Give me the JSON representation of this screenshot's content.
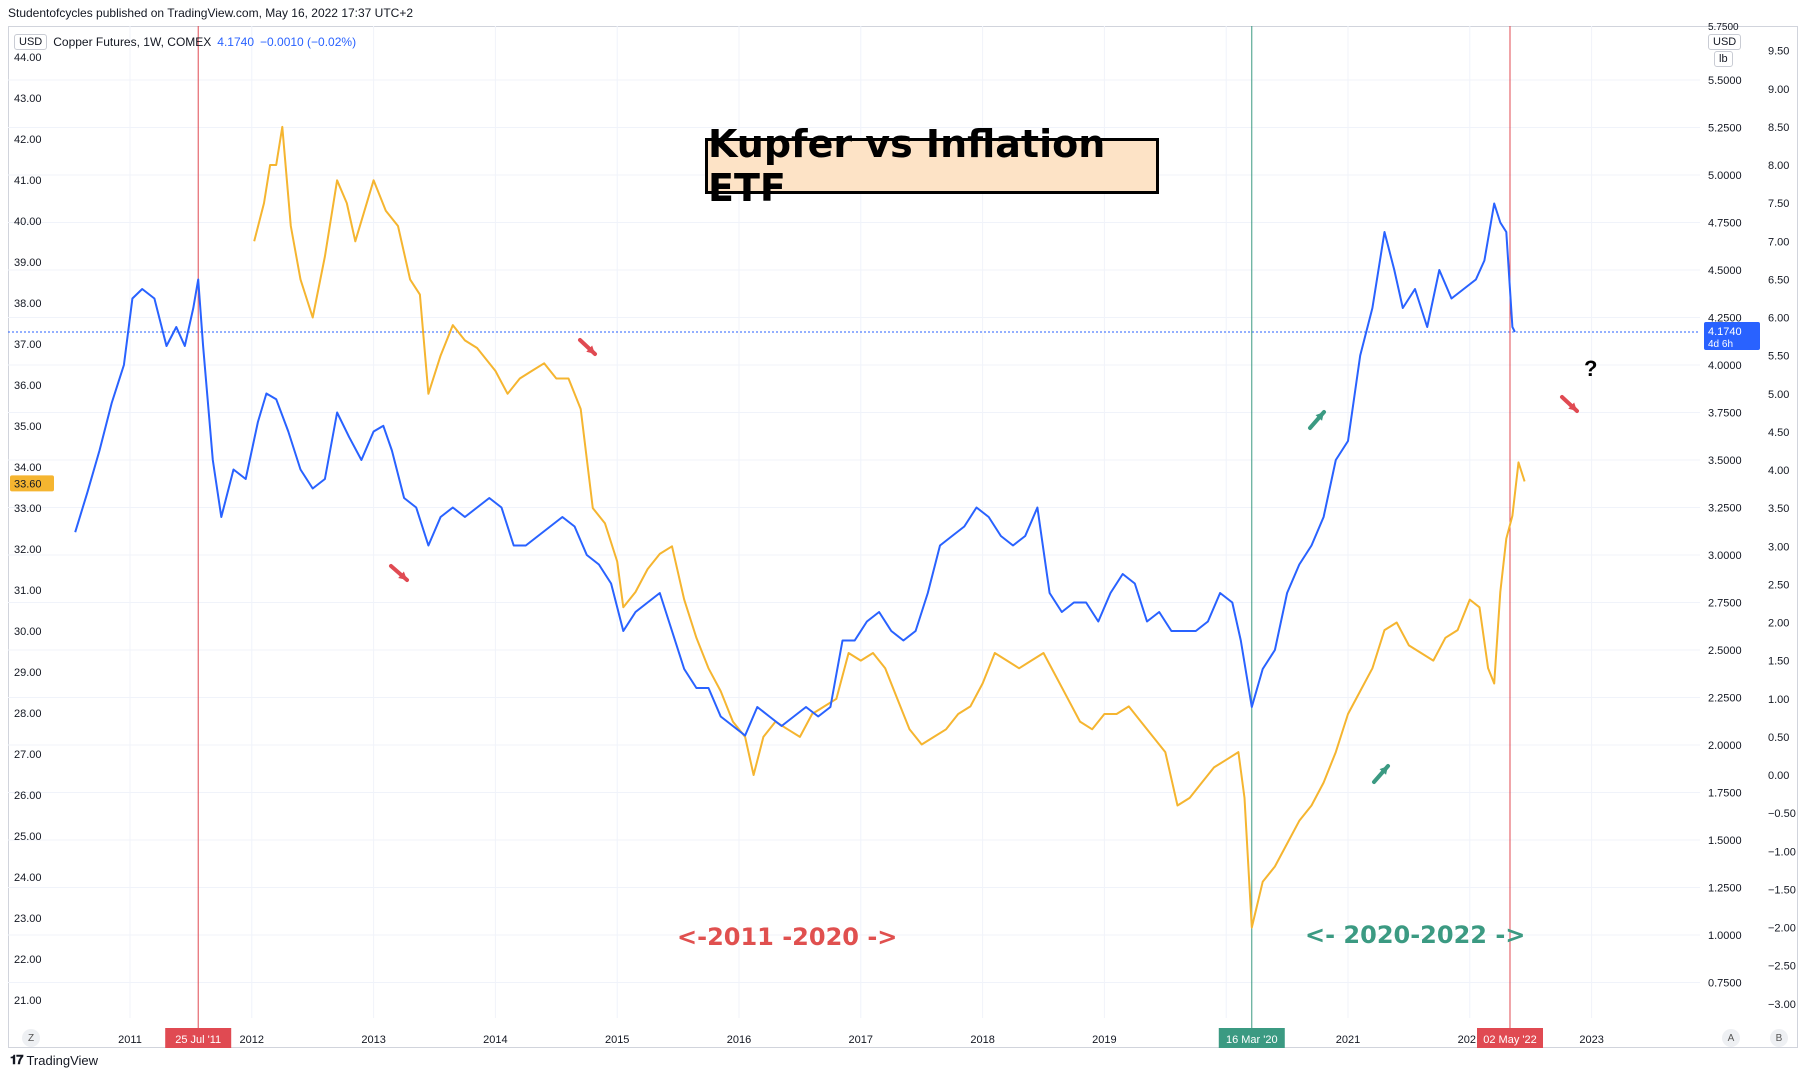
{
  "caption": "Studentofcycles published on TradingView.com, May 16, 2022 17:37 UTC+2",
  "legend": {
    "currency": "USD",
    "symbol": "Copper Futures, 1W, COMEX",
    "price": "4.1740",
    "change": "−0.0010 (−0.02%)"
  },
  "right_unit_top": "USD",
  "right_unit_bottom": "lb",
  "title": "Kupfer vs Inflation ETF",
  "annotation_left": "<-2011 -2020 ->",
  "annotation_right": "<- 2020-2022 ->",
  "question_mark": "?",
  "footer_brand": "TradingView",
  "btn_z": "Z",
  "btn_a": "A",
  "btn_b": "B",
  "colors": {
    "copper": "#2962ff",
    "inflation": "#f5b530",
    "red_marker": "#e04a52",
    "green_marker": "#3b9a82",
    "red_text": "#e0504f",
    "green_text": "#3b9a82"
  },
  "chart_data": {
    "type": "line",
    "x_ticks": [
      "2011",
      "2012",
      "2013",
      "2014",
      "2015",
      "2016",
      "2017",
      "2018",
      "2019",
      "2021",
      "2023"
    ],
    "x_marker_labels": [
      "25 Jul '11",
      "16 Mar '20",
      "02 May '22"
    ],
    "x_partial_label": "202",
    "left_axis_ticks": [
      "44.00",
      "43.00",
      "42.00",
      "41.00",
      "40.00",
      "39.00",
      "38.00",
      "37.00",
      "36.00",
      "35.00",
      "34.00",
      "33.00",
      "32.00",
      "31.00",
      "30.00",
      "29.00",
      "28.00",
      "27.00",
      "26.00",
      "25.00",
      "24.00",
      "23.00",
      "22.00",
      "21.00"
    ],
    "left_axis_label": "33.60",
    "mid_axis_ticks": [
      "5.5000",
      "5.2500",
      "5.0000",
      "4.7500",
      "4.5000",
      "4.2500",
      "4.0000",
      "3.7500",
      "3.5000",
      "3.2500",
      "3.0000",
      "2.7500",
      "2.5000",
      "2.2500",
      "2.0000",
      "1.7500",
      "1.5000",
      "1.2500",
      "1.0000",
      "0.7500"
    ],
    "mid_axis_top_partial": "5.7500",
    "right_axis_ticks": [
      "9.50",
      "9.00",
      "8.50",
      "8.00",
      "7.50",
      "7.00",
      "6.50",
      "6.00",
      "5.50",
      "5.00",
      "4.50",
      "4.00",
      "3.50",
      "3.00",
      "2.50",
      "2.00",
      "1.50",
      "1.00",
      "0.50",
      "0.00",
      "−0.50",
      "−1.00",
      "−1.50",
      "−2.00",
      "−2.50",
      "−3.00"
    ],
    "price_label": "4.1740",
    "price_label_sub": "4d 6h",
    "series": [
      {
        "name": "Copper Futures, 1W, COMEX",
        "axis": "mid",
        "points": [
          [
            2010.55,
            3.12
          ],
          [
            2010.65,
            3.33
          ],
          [
            2010.75,
            3.55
          ],
          [
            2010.85,
            3.8
          ],
          [
            2010.95,
            4.0
          ],
          [
            2011.02,
            4.35
          ],
          [
            2011.1,
            4.4
          ],
          [
            2011.2,
            4.35
          ],
          [
            2011.3,
            4.1
          ],
          [
            2011.38,
            4.2
          ],
          [
            2011.45,
            4.1
          ],
          [
            2011.52,
            4.3
          ],
          [
            2011.56,
            4.45
          ],
          [
            2011.6,
            4.1
          ],
          [
            2011.68,
            3.5
          ],
          [
            2011.75,
            3.2
          ],
          [
            2011.85,
            3.45
          ],
          [
            2011.95,
            3.4
          ],
          [
            2012.05,
            3.7
          ],
          [
            2012.12,
            3.85
          ],
          [
            2012.2,
            3.82
          ],
          [
            2012.3,
            3.65
          ],
          [
            2012.4,
            3.45
          ],
          [
            2012.5,
            3.35
          ],
          [
            2012.6,
            3.4
          ],
          [
            2012.7,
            3.75
          ],
          [
            2012.8,
            3.62
          ],
          [
            2012.9,
            3.5
          ],
          [
            2013.0,
            3.65
          ],
          [
            2013.08,
            3.68
          ],
          [
            2013.15,
            3.55
          ],
          [
            2013.25,
            3.3
          ],
          [
            2013.35,
            3.25
          ],
          [
            2013.45,
            3.05
          ],
          [
            2013.55,
            3.2
          ],
          [
            2013.65,
            3.25
          ],
          [
            2013.75,
            3.2
          ],
          [
            2013.85,
            3.25
          ],
          [
            2013.95,
            3.3
          ],
          [
            2014.05,
            3.25
          ],
          [
            2014.15,
            3.05
          ],
          [
            2014.25,
            3.05
          ],
          [
            2014.35,
            3.1
          ],
          [
            2014.45,
            3.15
          ],
          [
            2014.55,
            3.2
          ],
          [
            2014.65,
            3.15
          ],
          [
            2014.75,
            3.0
          ],
          [
            2014.85,
            2.95
          ],
          [
            2014.95,
            2.85
          ],
          [
            2015.05,
            2.6
          ],
          [
            2015.15,
            2.7
          ],
          [
            2015.25,
            2.75
          ],
          [
            2015.35,
            2.8
          ],
          [
            2015.45,
            2.6
          ],
          [
            2015.55,
            2.4
          ],
          [
            2015.65,
            2.3
          ],
          [
            2015.75,
            2.3
          ],
          [
            2015.85,
            2.15
          ],
          [
            2015.95,
            2.1
          ],
          [
            2016.05,
            2.05
          ],
          [
            2016.15,
            2.2
          ],
          [
            2016.25,
            2.15
          ],
          [
            2016.35,
            2.1
          ],
          [
            2016.45,
            2.15
          ],
          [
            2016.55,
            2.2
          ],
          [
            2016.65,
            2.15
          ],
          [
            2016.75,
            2.2
          ],
          [
            2016.85,
            2.55
          ],
          [
            2016.95,
            2.55
          ],
          [
            2017.05,
            2.65
          ],
          [
            2017.15,
            2.7
          ],
          [
            2017.25,
            2.6
          ],
          [
            2017.35,
            2.55
          ],
          [
            2017.45,
            2.6
          ],
          [
            2017.55,
            2.8
          ],
          [
            2017.65,
            3.05
          ],
          [
            2017.75,
            3.1
          ],
          [
            2017.85,
            3.15
          ],
          [
            2017.95,
            3.25
          ],
          [
            2018.05,
            3.2
          ],
          [
            2018.15,
            3.1
          ],
          [
            2018.25,
            3.05
          ],
          [
            2018.35,
            3.1
          ],
          [
            2018.45,
            3.25
          ],
          [
            2018.55,
            2.8
          ],
          [
            2018.65,
            2.7
          ],
          [
            2018.75,
            2.75
          ],
          [
            2018.85,
            2.75
          ],
          [
            2018.95,
            2.65
          ],
          [
            2019.05,
            2.8
          ],
          [
            2019.15,
            2.9
          ],
          [
            2019.25,
            2.85
          ],
          [
            2019.35,
            2.65
          ],
          [
            2019.45,
            2.7
          ],
          [
            2019.55,
            2.6
          ],
          [
            2019.65,
            2.6
          ],
          [
            2019.75,
            2.6
          ],
          [
            2019.85,
            2.65
          ],
          [
            2019.95,
            2.8
          ],
          [
            2020.05,
            2.75
          ],
          [
            2020.12,
            2.55
          ],
          [
            2020.21,
            2.2
          ],
          [
            2020.3,
            2.4
          ],
          [
            2020.4,
            2.5
          ],
          [
            2020.5,
            2.8
          ],
          [
            2020.6,
            2.95
          ],
          [
            2020.7,
            3.05
          ],
          [
            2020.8,
            3.2
          ],
          [
            2020.9,
            3.5
          ],
          [
            2021.0,
            3.6
          ],
          [
            2021.1,
            4.05
          ],
          [
            2021.2,
            4.3
          ],
          [
            2021.3,
            4.7
          ],
          [
            2021.38,
            4.5
          ],
          [
            2021.45,
            4.3
          ],
          [
            2021.55,
            4.4
          ],
          [
            2021.65,
            4.2
          ],
          [
            2021.75,
            4.5
          ],
          [
            2021.85,
            4.35
          ],
          [
            2021.95,
            4.4
          ],
          [
            2022.05,
            4.45
          ],
          [
            2022.12,
            4.55
          ],
          [
            2022.2,
            4.85
          ],
          [
            2022.25,
            4.75
          ],
          [
            2022.3,
            4.7
          ],
          [
            2022.35,
            4.2
          ],
          [
            2022.37,
            4.174
          ]
        ]
      },
      {
        "axis": "right",
        "points": [
          [
            2012.02,
            7.0
          ],
          [
            2012.1,
            7.5
          ],
          [
            2012.15,
            8.0
          ],
          [
            2012.2,
            8.0
          ],
          [
            2012.25,
            8.5
          ],
          [
            2012.32,
            7.2
          ],
          [
            2012.4,
            6.5
          ],
          [
            2012.5,
            6.0
          ],
          [
            2012.6,
            6.8
          ],
          [
            2012.7,
            7.8
          ],
          [
            2012.78,
            7.5
          ],
          [
            2012.85,
            7.0
          ],
          [
            2013.0,
            7.8
          ],
          [
            2013.1,
            7.4
          ],
          [
            2013.2,
            7.2
          ],
          [
            2013.3,
            6.5
          ],
          [
            2013.38,
            6.3
          ],
          [
            2013.45,
            5.0
          ],
          [
            2013.55,
            5.5
          ],
          [
            2013.65,
            5.9
          ],
          [
            2013.75,
            5.7
          ],
          [
            2013.85,
            5.6
          ],
          [
            2014.0,
            5.3
          ],
          [
            2014.1,
            5.0
          ],
          [
            2014.2,
            5.2
          ],
          [
            2014.3,
            5.3
          ],
          [
            2014.4,
            5.4
          ],
          [
            2014.5,
            5.2
          ],
          [
            2014.6,
            5.2
          ],
          [
            2014.7,
            4.8
          ],
          [
            2014.8,
            3.5
          ],
          [
            2014.9,
            3.3
          ],
          [
            2015.0,
            2.8
          ],
          [
            2015.05,
            2.2
          ],
          [
            2015.15,
            2.4
          ],
          [
            2015.25,
            2.7
          ],
          [
            2015.35,
            2.9
          ],
          [
            2015.45,
            3.0
          ],
          [
            2015.55,
            2.3
          ],
          [
            2015.65,
            1.8
          ],
          [
            2015.75,
            1.4
          ],
          [
            2015.85,
            1.1
          ],
          [
            2015.95,
            0.7
          ],
          [
            2016.05,
            0.5
          ],
          [
            2016.12,
            0.0
          ],
          [
            2016.2,
            0.5
          ],
          [
            2016.3,
            0.7
          ],
          [
            2016.4,
            0.6
          ],
          [
            2016.5,
            0.5
          ],
          [
            2016.6,
            0.8
          ],
          [
            2016.7,
            0.9
          ],
          [
            2016.8,
            1.0
          ],
          [
            2016.9,
            1.6
          ],
          [
            2017.0,
            1.5
          ],
          [
            2017.1,
            1.6
          ],
          [
            2017.2,
            1.4
          ],
          [
            2017.3,
            1.0
          ],
          [
            2017.4,
            0.6
          ],
          [
            2017.5,
            0.4
          ],
          [
            2017.6,
            0.5
          ],
          [
            2017.7,
            0.6
          ],
          [
            2017.8,
            0.8
          ],
          [
            2017.9,
            0.9
          ],
          [
            2018.0,
            1.2
          ],
          [
            2018.1,
            1.6
          ],
          [
            2018.2,
            1.5
          ],
          [
            2018.3,
            1.4
          ],
          [
            2018.4,
            1.5
          ],
          [
            2018.5,
            1.6
          ],
          [
            2018.6,
            1.3
          ],
          [
            2018.7,
            1.0
          ],
          [
            2018.8,
            0.7
          ],
          [
            2018.9,
            0.6
          ],
          [
            2019.0,
            0.8
          ],
          [
            2019.1,
            0.8
          ],
          [
            2019.2,
            0.9
          ],
          [
            2019.3,
            0.7
          ],
          [
            2019.4,
            0.5
          ],
          [
            2019.5,
            0.3
          ],
          [
            2019.6,
            -0.4
          ],
          [
            2019.7,
            -0.3
          ],
          [
            2019.8,
            -0.1
          ],
          [
            2019.9,
            0.1
          ],
          [
            2020.0,
            0.2
          ],
          [
            2020.1,
            0.3
          ],
          [
            2020.15,
            -0.3
          ],
          [
            2020.21,
            -2.0
          ],
          [
            2020.3,
            -1.4
          ],
          [
            2020.4,
            -1.2
          ],
          [
            2020.5,
            -0.9
          ],
          [
            2020.6,
            -0.6
          ],
          [
            2020.7,
            -0.4
          ],
          [
            2020.8,
            -0.1
          ],
          [
            2020.9,
            0.3
          ],
          [
            2021.0,
            0.8
          ],
          [
            2021.1,
            1.1
          ],
          [
            2021.2,
            1.4
          ],
          [
            2021.3,
            1.9
          ],
          [
            2021.4,
            2.0
          ],
          [
            2021.5,
            1.7
          ],
          [
            2021.6,
            1.6
          ],
          [
            2021.7,
            1.5
          ],
          [
            2021.8,
            1.8
          ],
          [
            2021.9,
            1.9
          ],
          [
            2022.0,
            2.3
          ],
          [
            2022.08,
            2.2
          ],
          [
            2022.15,
            1.4
          ],
          [
            2022.2,
            1.2
          ],
          [
            2022.25,
            2.4
          ],
          [
            2022.3,
            3.1
          ],
          [
            2022.35,
            3.4
          ],
          [
            2022.4,
            4.1
          ],
          [
            2022.45,
            3.85
          ]
        ]
      }
    ],
    "markers": [
      {
        "date": 2011.56,
        "label": "25 Jul '11",
        "color": "red"
      },
      {
        "date": 2020.21,
        "label": "16 Mar '20",
        "color": "green"
      },
      {
        "date": 2022.33,
        "label": "02 May '22",
        "color": "red"
      }
    ],
    "price_line": 4.174
  }
}
